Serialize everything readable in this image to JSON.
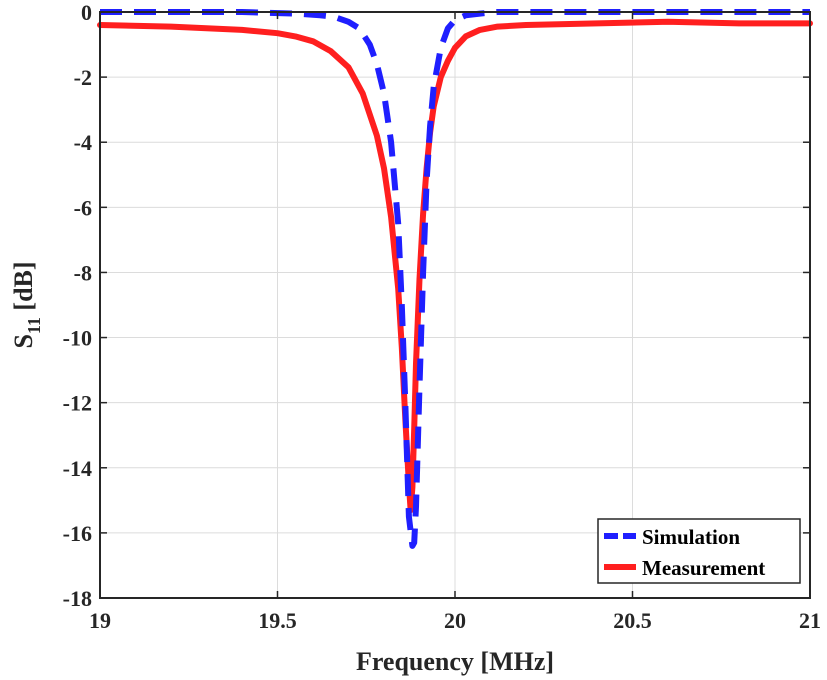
{
  "chart_data": {
    "type": "line",
    "xlabel": "Frequency [MHz]",
    "ylabel_main": "S",
    "ylabel_sub": "11",
    "ylabel_unit": "[dB]",
    "xlim": [
      19,
      21
    ],
    "ylim": [
      -18,
      0
    ],
    "xticks": [
      19,
      19.5,
      20,
      20.5,
      21
    ],
    "xtick_labels": [
      "19",
      "19.5",
      "20",
      "20.5",
      "21"
    ],
    "yticks": [
      0,
      -2,
      -4,
      -6,
      -8,
      -10,
      -12,
      -14,
      -16,
      -18
    ],
    "ytick_labels": [
      "0",
      "-2",
      "-4",
      "-6",
      "-8",
      "-10",
      "-12",
      "-14",
      "-16",
      "-18"
    ],
    "grid": true,
    "legend_position": "bottom-right",
    "series": [
      {
        "name": "Simulation",
        "color": "#1f1fff",
        "style": "dashed",
        "x": [
          19.0,
          19.2,
          19.4,
          19.55,
          19.62,
          19.66,
          19.7,
          19.73,
          19.76,
          19.78,
          19.8,
          19.82,
          19.84,
          19.85,
          19.86,
          19.87,
          19.88,
          19.885,
          19.89,
          19.9,
          19.91,
          19.92,
          19.93,
          19.94,
          19.96,
          19.98,
          20.0,
          20.03,
          20.07,
          20.12,
          20.2,
          20.4,
          20.6,
          20.8,
          21.0
        ],
        "y": [
          0.0,
          0.0,
          0.0,
          -0.05,
          -0.1,
          -0.15,
          -0.3,
          -0.5,
          -1.0,
          -1.6,
          -2.5,
          -4.0,
          -6.5,
          -9.0,
          -12.0,
          -15.5,
          -16.4,
          -16.3,
          -15.2,
          -11.5,
          -8.0,
          -5.2,
          -3.5,
          -2.3,
          -1.1,
          -0.5,
          -0.25,
          -0.1,
          -0.05,
          0.0,
          0.0,
          0.0,
          0.0,
          0.0,
          0.0
        ]
      },
      {
        "name": "Measurement",
        "color": "#ff1f1f",
        "style": "solid",
        "x": [
          19.0,
          19.2,
          19.4,
          19.5,
          19.55,
          19.6,
          19.65,
          19.7,
          19.74,
          19.78,
          19.8,
          19.82,
          19.84,
          19.85,
          19.86,
          19.87,
          19.875,
          19.88,
          19.885,
          19.89,
          19.9,
          19.91,
          19.92,
          19.93,
          19.94,
          19.96,
          19.98,
          20.0,
          20.03,
          20.07,
          20.12,
          20.2,
          20.4,
          20.6,
          20.8,
          21.0
        ],
        "y": [
          -0.4,
          -0.45,
          -0.55,
          -0.65,
          -0.75,
          -0.9,
          -1.2,
          -1.7,
          -2.5,
          -3.8,
          -4.8,
          -6.3,
          -8.5,
          -10.3,
          -12.5,
          -14.5,
          -15.3,
          -14.6,
          -12.8,
          -10.8,
          -8.2,
          -6.2,
          -4.8,
          -3.7,
          -2.9,
          -2.0,
          -1.5,
          -1.1,
          -0.75,
          -0.55,
          -0.45,
          -0.4,
          -0.35,
          -0.3,
          -0.35,
          -0.35
        ]
      }
    ]
  }
}
